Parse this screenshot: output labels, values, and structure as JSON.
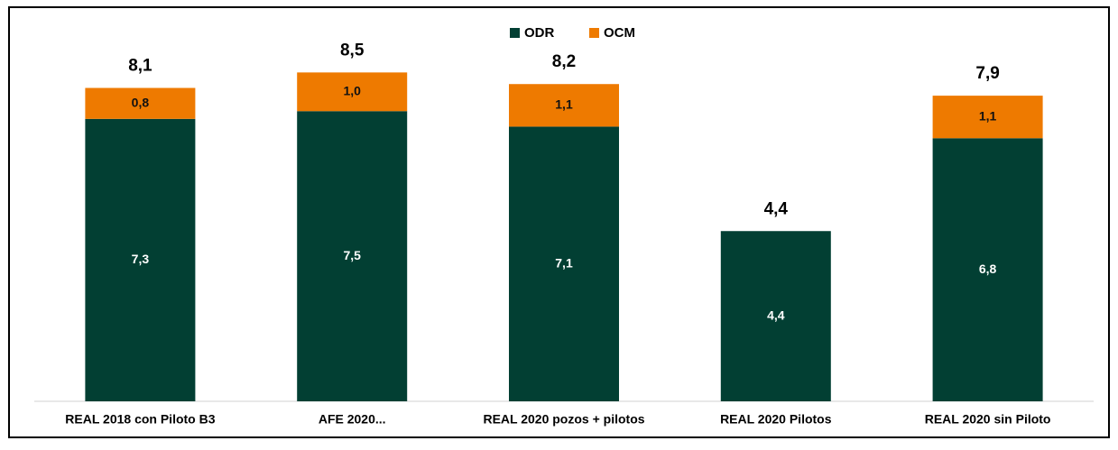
{
  "chart_data": {
    "type": "stacked_bar",
    "categories": [
      "REAL 2018 con Piloto B3",
      "AFE 2020...",
      "REAL 2020 pozos + pilotos",
      "REAL 2020 Pilotos",
      "REAL 2020 sin Piloto"
    ],
    "series": [
      {
        "name": "ODR",
        "color": "#023f33",
        "values": [
          7.3,
          7.5,
          7.1,
          4.4,
          6.8
        ],
        "value_labels": [
          "7,3",
          "7,5",
          "7,1",
          "4,4",
          "6,8"
        ]
      },
      {
        "name": "OCM",
        "color": "#ee7a00",
        "values": [
          0.8,
          1.0,
          1.1,
          null,
          1.1
        ],
        "value_labels": [
          "0,8",
          "1,0",
          "1,1",
          null,
          "1,1"
        ]
      }
    ],
    "totals": [
      8.1,
      8.5,
      8.2,
      4.4,
      7.9
    ],
    "total_labels": [
      "8,1",
      "8,5",
      "8,2",
      "4,4",
      "7,9"
    ],
    "ylim": [
      0,
      10
    ],
    "legend": "top"
  }
}
